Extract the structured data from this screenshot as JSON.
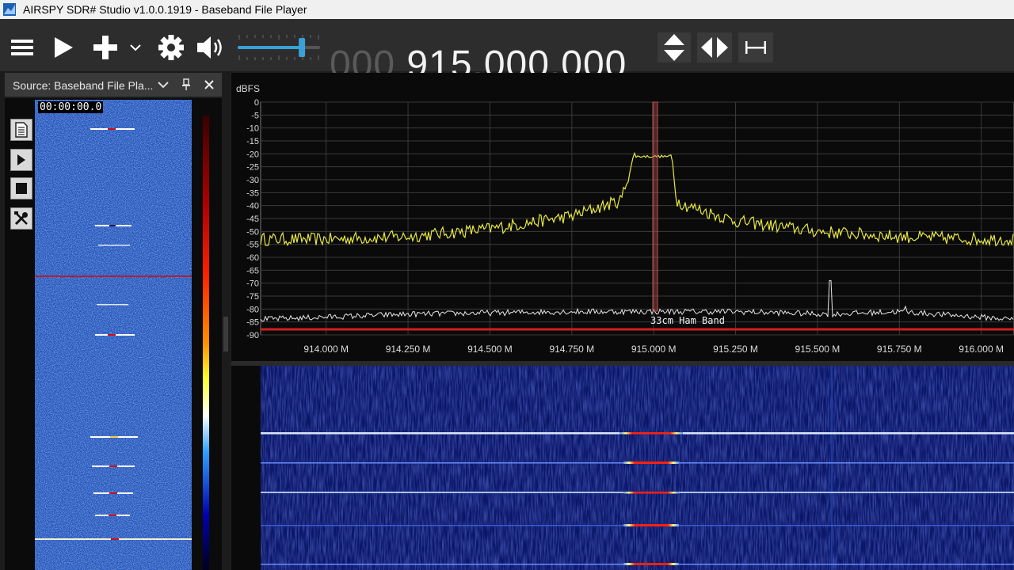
{
  "window": {
    "title": "AIRSPY SDR# Studio v1.0.0.1919 - Baseband File Player",
    "accent": "#1a5fb4"
  },
  "toolbar": {
    "buttons": [
      {
        "name": "menu-icon"
      },
      {
        "name": "play-icon"
      },
      {
        "name": "add-icon"
      },
      {
        "name": "chevron-down-icon"
      },
      {
        "name": "gear-icon"
      },
      {
        "name": "speaker-icon"
      }
    ],
    "volume_level": 0.78,
    "frequency_leading": "000.",
    "frequency_main": "915.000.000",
    "step_icons": [
      "up-down-icon",
      "left-right-icon",
      "span-icon"
    ]
  },
  "source_panel": {
    "title": "Source: Baseband File Pla...",
    "timecode": "00:00:00.0",
    "controls": [
      "document-icon",
      "play-icon",
      "stop-icon",
      "tools-icon"
    ]
  },
  "spectrum": {
    "unit_label": "dBFS",
    "y_ticks": [
      "0",
      "-5",
      "-10",
      "-15",
      "-20",
      "-25",
      "-30",
      "-35",
      "-40",
      "-45",
      "-50",
      "-55",
      "-60",
      "-65",
      "-70",
      "-75",
      "-80",
      "-85",
      "-90"
    ],
    "x_ticks": [
      "914.000 M",
      "914.250 M",
      "914.500 M",
      "914.750 M",
      "915.000 M",
      "915.250 M",
      "915.500 M",
      "915.750 M",
      "916.000 M"
    ],
    "band_label": "33cm Ham Band",
    "colors": {
      "trace": "#e8e840",
      "floor_trace": "#e6e6e6",
      "band_line": "#d02020",
      "center_marker": "#c05050"
    }
  },
  "chart_data": {
    "type": "line",
    "xlabel": "",
    "ylabel": "dBFS",
    "xlim": [
      913.8,
      916.1
    ],
    "ylim": [
      -90,
      0
    ],
    "grid": true,
    "series": [
      {
        "x": [
          913.8,
          914.0,
          914.25,
          914.5,
          914.75,
          914.9,
          914.94,
          915.0,
          915.055,
          915.07,
          915.1,
          915.25,
          915.5,
          915.75,
          916.0,
          916.1
        ],
        "values": [
          -53,
          -53,
          -52,
          -49,
          -44,
          -38,
          -21,
          -21,
          -21,
          -38,
          -40,
          -46,
          -50,
          -52,
          -53,
          -53
        ]
      },
      {
        "x": [
          913.8,
          914.25,
          914.75,
          915.0,
          915.25,
          915.54,
          915.75,
          916.1
        ],
        "values": [
          -84,
          -82,
          -81,
          -81,
          -81,
          -82,
          -81,
          -84
        ]
      }
    ]
  }
}
